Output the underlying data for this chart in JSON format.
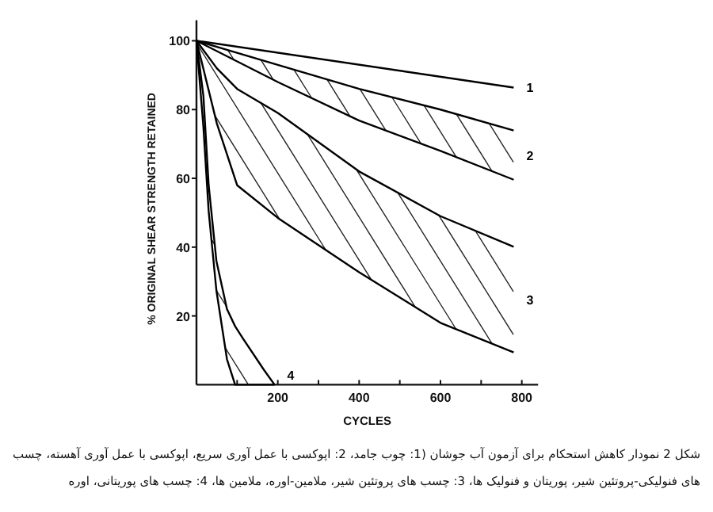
{
  "chart_data": {
    "type": "line",
    "xlabel": "CYCLES",
    "ylabel": "% ORIGINAL SHEAR STRENGTH RETAINED",
    "xlim": [
      0,
      840
    ],
    "ylim": [
      0,
      106
    ],
    "xticks": [
      {
        "value": 100,
        "label": null
      },
      200,
      {
        "value": 300,
        "label": null
      },
      400,
      {
        "value": 500,
        "label": null
      },
      600,
      {
        "value": 700,
        "label": null
      },
      800
    ],
    "yticks": [
      20,
      40,
      60,
      80,
      100
    ],
    "grid": false,
    "marker": "none",
    "line_style": "solid",
    "series": [
      {
        "name": "1",
        "color": "#000000",
        "x": [
          0,
          780
        ],
        "values": [
          100,
          86.4
        ]
      },
      {
        "name": "2",
        "color": "#000000",
        "x": [
          0,
          200,
          400,
          600,
          780
        ],
        "values": [
          100,
          93,
          86,
          80,
          73.9
        ]
      },
      {
        "color": "#000000",
        "x": [
          0,
          200,
          400,
          600,
          780
        ],
        "values": [
          100,
          88,
          76.8,
          68,
          59.6
        ]
      },
      {
        "name": "3",
        "color": "#000000",
        "x": [
          0,
          50,
          100,
          200,
          400,
          600,
          780
        ],
        "values": [
          100,
          92,
          86,
          79,
          62,
          49,
          40.1
        ]
      },
      {
        "color": "#000000",
        "x": [
          0,
          50,
          100,
          200,
          400,
          600,
          780
        ],
        "values": [
          100,
          76,
          58,
          48.5,
          32.7,
          18,
          9.4
        ]
      },
      {
        "name": "4",
        "color": "#000000",
        "x": [
          0,
          17,
          30,
          49,
          75,
          95,
          114,
          166,
          192
        ],
        "values": [
          100,
          84,
          58,
          36,
          22,
          17,
          13.5,
          4.3,
          0
        ]
      },
      {
        "color": "#000000",
        "x": [
          0,
          17,
          30,
          49,
          75,
          95,
          114,
          166,
          192
        ],
        "values": [
          100,
          75,
          50.4,
          27.4,
          7.4,
          0,
          0,
          0,
          0
        ]
      }
    ],
    "annotations": [
      "شکل 2 نمودار کاهش استحکام برای آزمون آب جوشان (1: چوب جامد، 2: اپوکسی با عمل آوری سریع، اپوکسی با عمل آوری آهسته، چسب های فنولیکی-پروتئین شیر، پوریتان و فنولیک ها، 3: چسب های پروتئین شیر، ملامین-اوره، ملامین ها، 4: چسب های پوریتانی، اوره"
    ]
  }
}
